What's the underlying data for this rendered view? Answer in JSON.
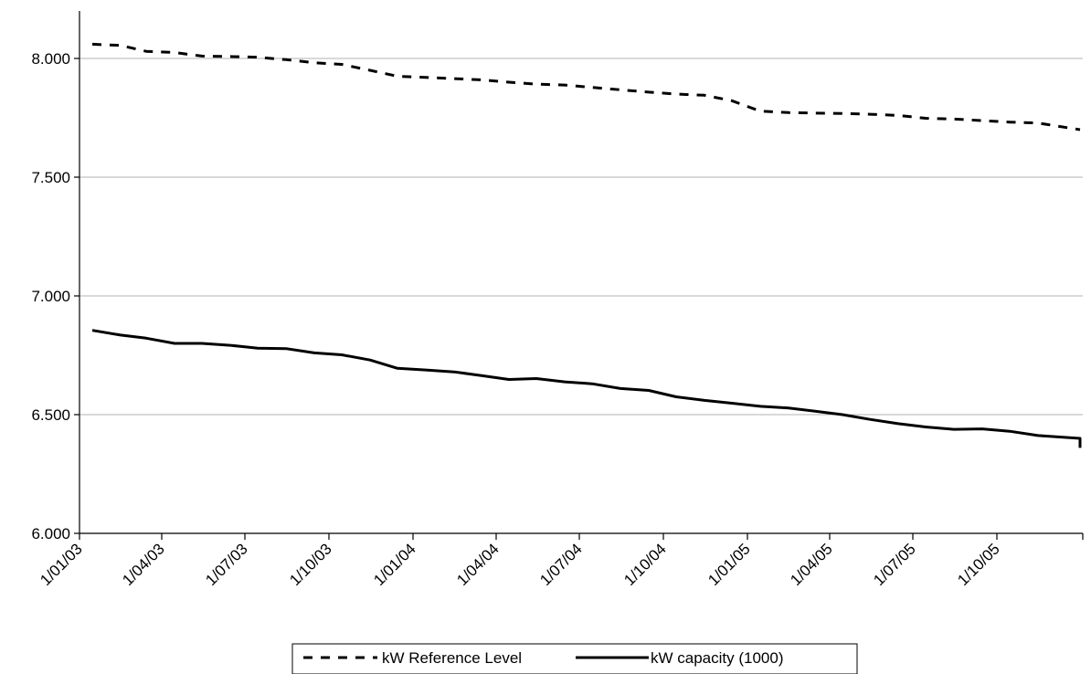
{
  "chart_data": {
    "type": "line",
    "title": "",
    "xlabel": "",
    "ylabel": "",
    "x_ticks": [
      "1/01/03",
      "1/04/03",
      "1/07/03",
      "1/10/03",
      "1/01/04",
      "1/04/04",
      "1/07/04",
      "1/10/04",
      "1/01/05",
      "1/04/05",
      "1/07/05",
      "1/10/05"
    ],
    "y_ticks": [
      "6.000",
      "6.500",
      "7.000",
      "7.500",
      "8.000"
    ],
    "ylim": [
      6000,
      8200
    ],
    "xlim": [
      "2003-01-01",
      "2006-01-03"
    ],
    "grid": "horizontal",
    "legend_position": "bottom",
    "series": [
      {
        "name": "kW Reference Level",
        "style": "dashed",
        "color": "#000000",
        "x": [
          "2003-01-15",
          "2003-02-15",
          "2003-03-15",
          "2003-04-15",
          "2003-05-15",
          "2003-06-15",
          "2003-07-15",
          "2003-08-15",
          "2003-09-15",
          "2003-10-15",
          "2003-11-15",
          "2003-12-15",
          "2004-01-15",
          "2004-02-15",
          "2004-03-15",
          "2004-04-15",
          "2004-05-15",
          "2004-06-15",
          "2004-07-15",
          "2004-08-15",
          "2004-09-15",
          "2004-10-15",
          "2004-11-15",
          "2004-12-15",
          "2005-01-15",
          "2005-02-15",
          "2005-03-15",
          "2005-04-15",
          "2005-05-15",
          "2005-06-15",
          "2005-07-15",
          "2005-08-15",
          "2005-09-15",
          "2005-10-15",
          "2005-11-15",
          "2005-12-31"
        ],
        "y": [
          8060,
          8055,
          8030,
          8025,
          8010,
          8008,
          8005,
          7995,
          7982,
          7975,
          7950,
          7925,
          7920,
          7915,
          7910,
          7900,
          7892,
          7888,
          7878,
          7868,
          7858,
          7850,
          7845,
          7822,
          7778,
          7772,
          7770,
          7768,
          7765,
          7760,
          7748,
          7745,
          7738,
          7732,
          7728,
          7700
        ]
      },
      {
        "name": "kW capacity (1000)",
        "style": "solid",
        "color": "#000000",
        "x": [
          "2003-01-15",
          "2003-02-15",
          "2003-03-15",
          "2003-04-15",
          "2003-05-15",
          "2003-06-15",
          "2003-07-15",
          "2003-08-15",
          "2003-09-15",
          "2003-10-15",
          "2003-11-15",
          "2003-12-15",
          "2004-01-15",
          "2004-02-15",
          "2004-03-15",
          "2004-04-15",
          "2004-05-15",
          "2004-06-15",
          "2004-07-15",
          "2004-08-15",
          "2004-09-15",
          "2004-10-15",
          "2004-11-15",
          "2004-12-15",
          "2005-01-15",
          "2005-02-15",
          "2005-03-15",
          "2005-04-15",
          "2005-05-15",
          "2005-06-15",
          "2005-07-15",
          "2005-08-15",
          "2005-09-15",
          "2005-10-15",
          "2005-11-15",
          "2005-12-31",
          "2005-12-31"
        ],
        "y": [
          6855,
          6835,
          6822,
          6800,
          6800,
          6792,
          6780,
          6778,
          6760,
          6752,
          6730,
          6695,
          6688,
          6680,
          6665,
          6648,
          6652,
          6638,
          6630,
          6610,
          6602,
          6575,
          6560,
          6548,
          6535,
          6528,
          6515,
          6500,
          6480,
          6462,
          6448,
          6438,
          6440,
          6430,
          6412,
          6400,
          6360
        ]
      }
    ]
  }
}
